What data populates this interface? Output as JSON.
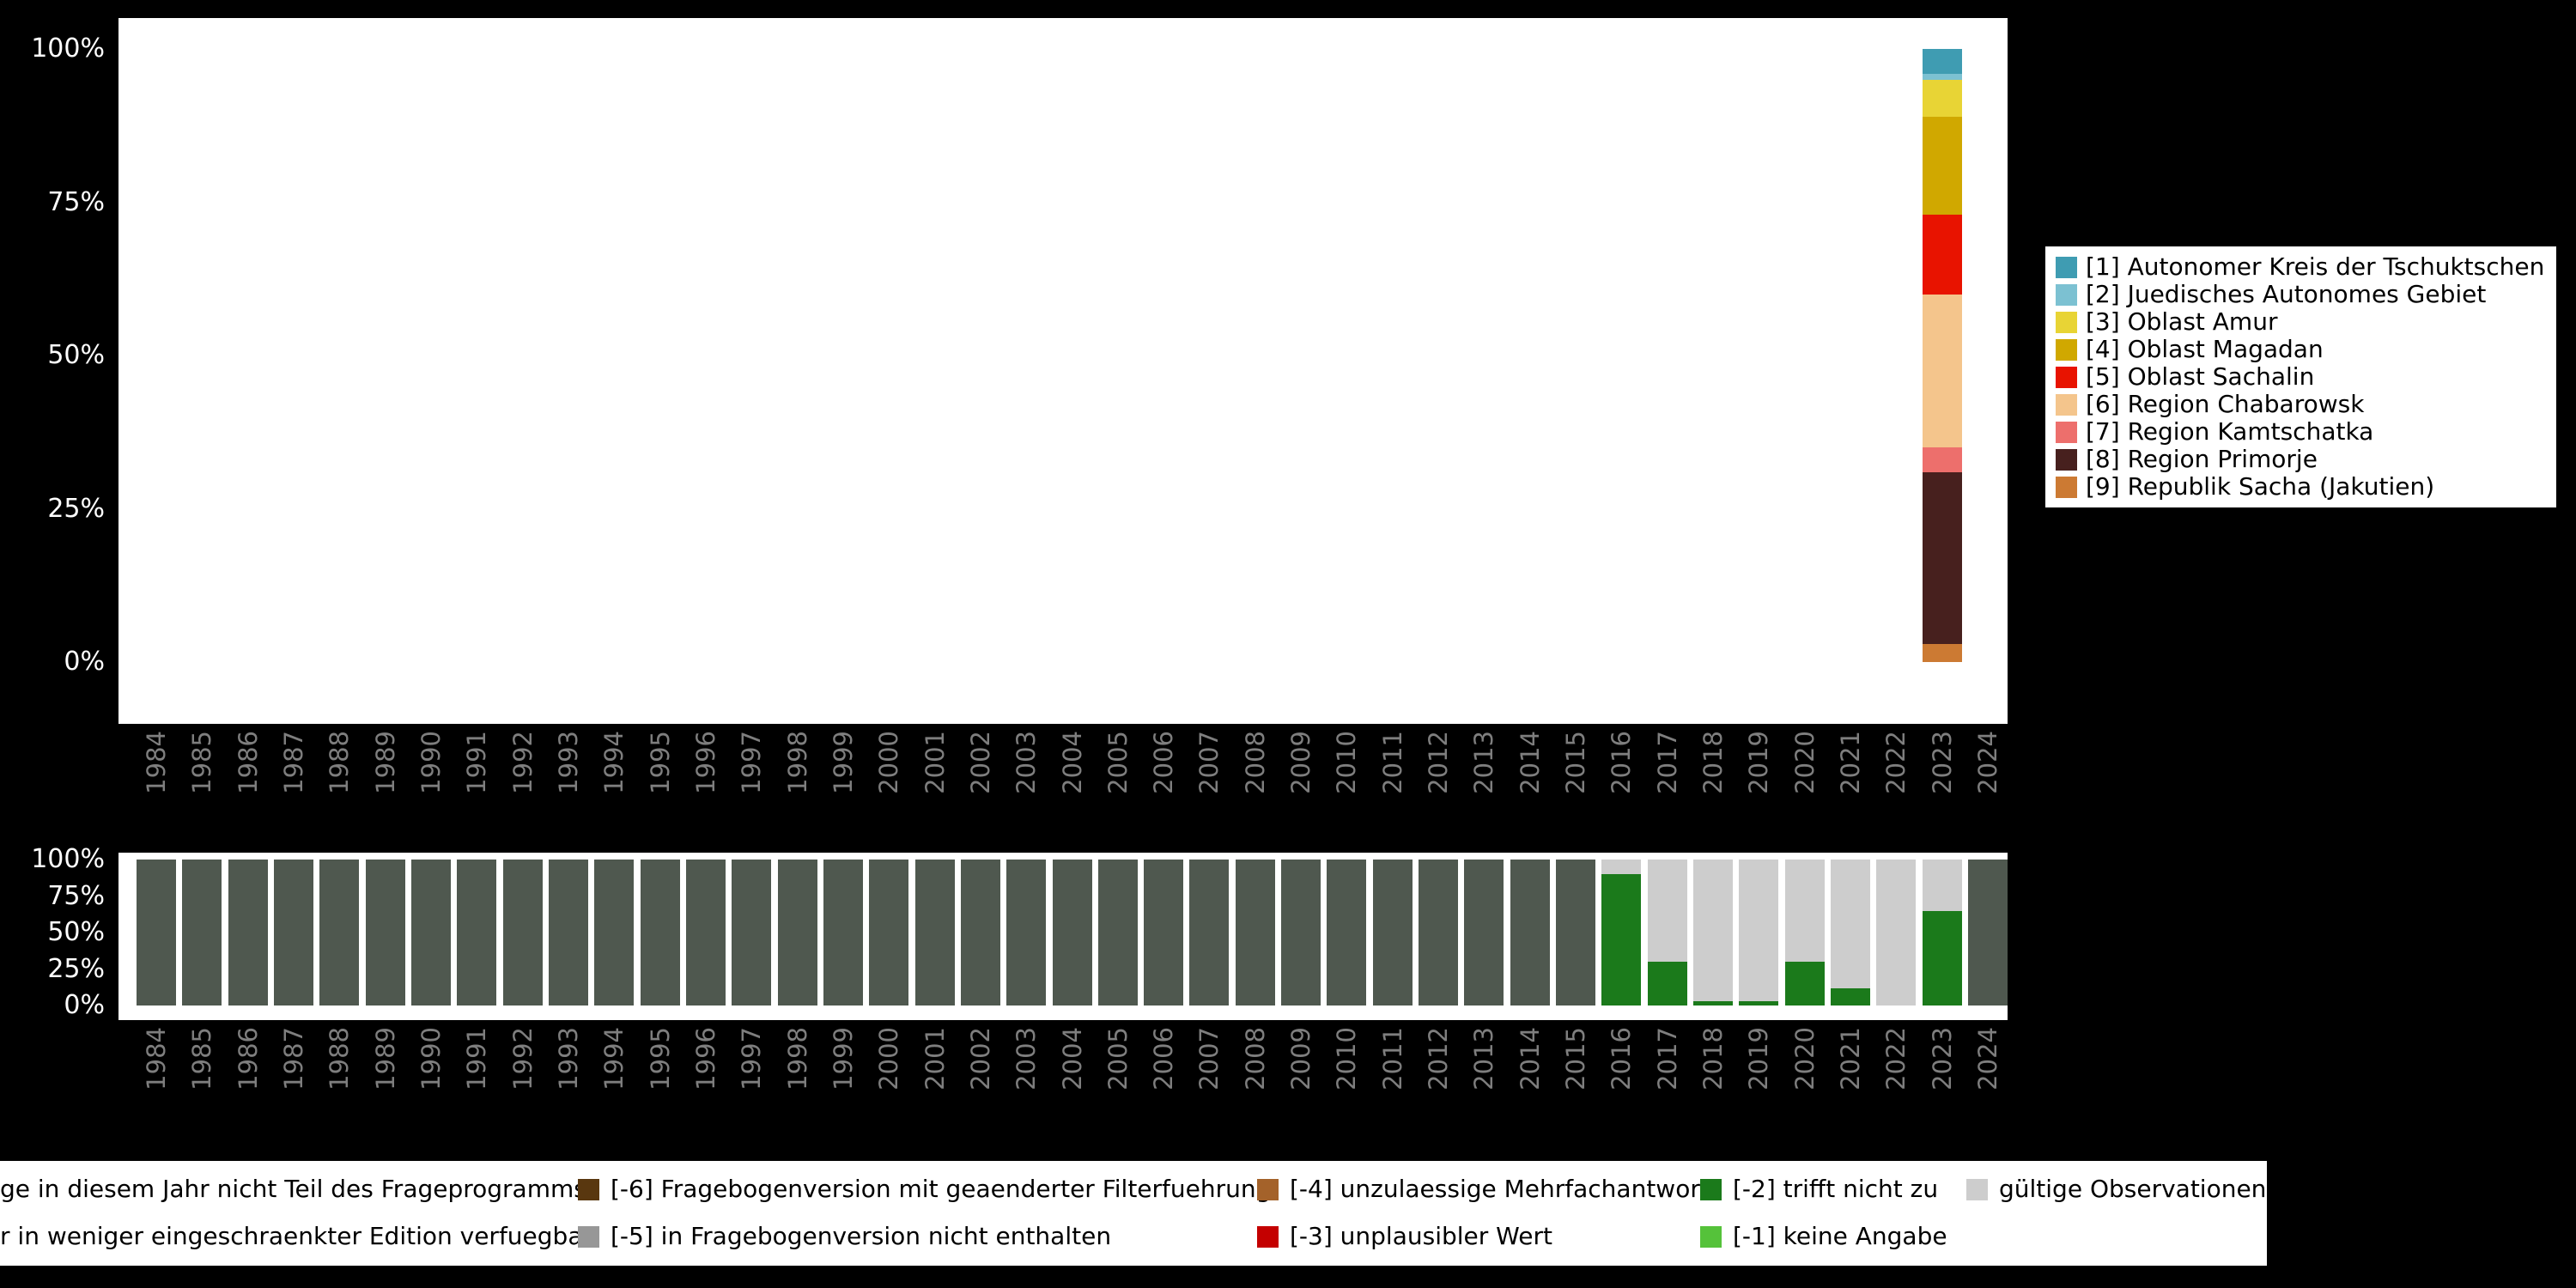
{
  "page": {
    "background": "#000000",
    "panel_background": "#ffffff",
    "axis_tick_color": "#ffffff",
    "year_label_color": "#7e7e7e",
    "legend_text_color": "#000000"
  },
  "chart_data": [
    {
      "id": "category-distribution",
      "type": "bar",
      "stacked": true,
      "unit": "percent",
      "title": "",
      "xlabel": "",
      "ylabel": "",
      "ylim": [
        0,
        100
      ],
      "grid": false,
      "legend_position": "right",
      "ytick_labels": [
        "100%",
        "75%",
        "50%",
        "25%",
        "0%"
      ],
      "categories": [
        "1984",
        "1985",
        "1986",
        "1987",
        "1988",
        "1989",
        "1990",
        "1991",
        "1992",
        "1993",
        "1994",
        "1995",
        "1996",
        "1997",
        "1998",
        "1999",
        "2000",
        "2001",
        "2002",
        "2003",
        "2004",
        "2005",
        "2006",
        "2007",
        "2008",
        "2009",
        "2010",
        "2011",
        "2012",
        "2013",
        "2014",
        "2015",
        "2016",
        "2017",
        "2018",
        "2019",
        "2020",
        "2021",
        "2022",
        "2023",
        "2024"
      ],
      "series": [
        {
          "name": "[1] Autonomer Kreis der Tschuktschen",
          "color": "#3f9cb2",
          "values_by_year": {
            "2023": 4
          }
        },
        {
          "name": "[2] Juedisches Autonomes Gebiet",
          "color": "#7cc1d2",
          "values_by_year": {
            "2023": 1
          }
        },
        {
          "name": "[3] Oblast Amur",
          "color": "#e8d435",
          "values_by_year": {
            "2023": 6
          }
        },
        {
          "name": "[4] Oblast Magadan",
          "color": "#d0a800",
          "values_by_year": {
            "2023": 16
          }
        },
        {
          "name": "[5] Oblast Sachalin",
          "color": "#e81300",
          "values_by_year": {
            "2023": 13
          }
        },
        {
          "name": "[6] Region Chabarowsk",
          "color": "#f4c58c",
          "values_by_year": {
            "2023": 25
          }
        },
        {
          "name": "[7] Region Kamtschatka",
          "color": "#ed6f6c",
          "values_by_year": {
            "2023": 4
          }
        },
        {
          "name": "[8] Region Primorje",
          "color": "#47201e",
          "values_by_year": {
            "2023": 28
          }
        },
        {
          "name": "[9] Republik Sacha (Jakutien)",
          "color": "#cc7a33",
          "values_by_year": {
            "2023": 3
          }
        }
      ]
    },
    {
      "id": "missing-values",
      "type": "bar",
      "stacked": true,
      "unit": "percent",
      "title": "",
      "xlabel": "",
      "ylabel": "",
      "ylim": [
        0,
        100
      ],
      "grid": false,
      "ytick_labels": [
        "100%",
        "75%",
        "50%",
        "25%",
        "0%"
      ],
      "categories": [
        "1984",
        "1985",
        "1986",
        "1987",
        "1988",
        "1989",
        "1990",
        "1991",
        "1992",
        "1993",
        "1994",
        "1995",
        "1996",
        "1997",
        "1998",
        "1999",
        "2000",
        "2001",
        "2002",
        "2003",
        "2004",
        "2005",
        "2006",
        "2007",
        "2008",
        "2009",
        "2010",
        "2011",
        "2012",
        "2013",
        "2014",
        "2015",
        "2016",
        "2017",
        "2018",
        "2019",
        "2020",
        "2021",
        "2022",
        "2023",
        "2024"
      ],
      "palette": {
        "not_in_program": "#4f584f",
        "edition": "#9b9b9b",
        "valid": "#cdcdcd",
        "minus1": "#55c23a",
        "minus2": "#1b7a1b",
        "minus3": "#c40000",
        "minus4": "#a4622a",
        "minus5": "#979797",
        "minus6": "#59370f"
      },
      "default_stack": [
        [
          "not_in_program",
          100
        ]
      ],
      "stacks_by_year": {
        "2016": [
          [
            "minus2",
            90
          ],
          [
            "valid",
            10
          ]
        ],
        "2017": [
          [
            "minus2",
            30
          ],
          [
            "valid",
            70
          ]
        ],
        "2018": [
          [
            "minus2",
            3
          ],
          [
            "valid",
            97
          ]
        ],
        "2019": [
          [
            "minus2",
            3
          ],
          [
            "valid",
            97
          ]
        ],
        "2020": [
          [
            "minus2",
            30
          ],
          [
            "valid",
            70
          ]
        ],
        "2021": [
          [
            "minus2",
            12
          ],
          [
            "valid",
            88
          ]
        ],
        "2022": [
          [
            "valid",
            100
          ]
        ],
        "2023": [
          [
            "minus2",
            65
          ],
          [
            "valid",
            35
          ]
        ],
        "2024": [
          [
            "not_in_program",
            100
          ]
        ]
      }
    }
  ],
  "missings_legend": {
    "rows": [
      [
        {
          "key": "not_in_program",
          "swatch": false,
          "label": "ge in diesem Jahr nicht Teil des Frageprogramms"
        },
        {
          "key": "minus6",
          "swatch": true,
          "label": "[-6] Fragebogenversion mit geaenderter Filterfuehrung"
        },
        {
          "key": "minus4",
          "swatch": true,
          "label": "[-4] unzulaessige Mehrfachantwort"
        },
        {
          "key": "minus2",
          "swatch": true,
          "label": "[-2] trifft nicht zu"
        },
        {
          "key": "valid",
          "swatch": true,
          "label": "gültige Observationen"
        }
      ],
      [
        {
          "key": "edition",
          "swatch": false,
          "label": "r in weniger eingeschraenkter Edition verfuegbar"
        },
        {
          "key": "minus5",
          "swatch": true,
          "label": "[-5] in Fragebogenversion nicht enthalten"
        },
        {
          "key": "minus3",
          "swatch": true,
          "label": "[-3] unplausibler Wert"
        },
        {
          "key": "minus1",
          "swatch": true,
          "label": "[-1] keine Angabe"
        }
      ]
    ]
  }
}
